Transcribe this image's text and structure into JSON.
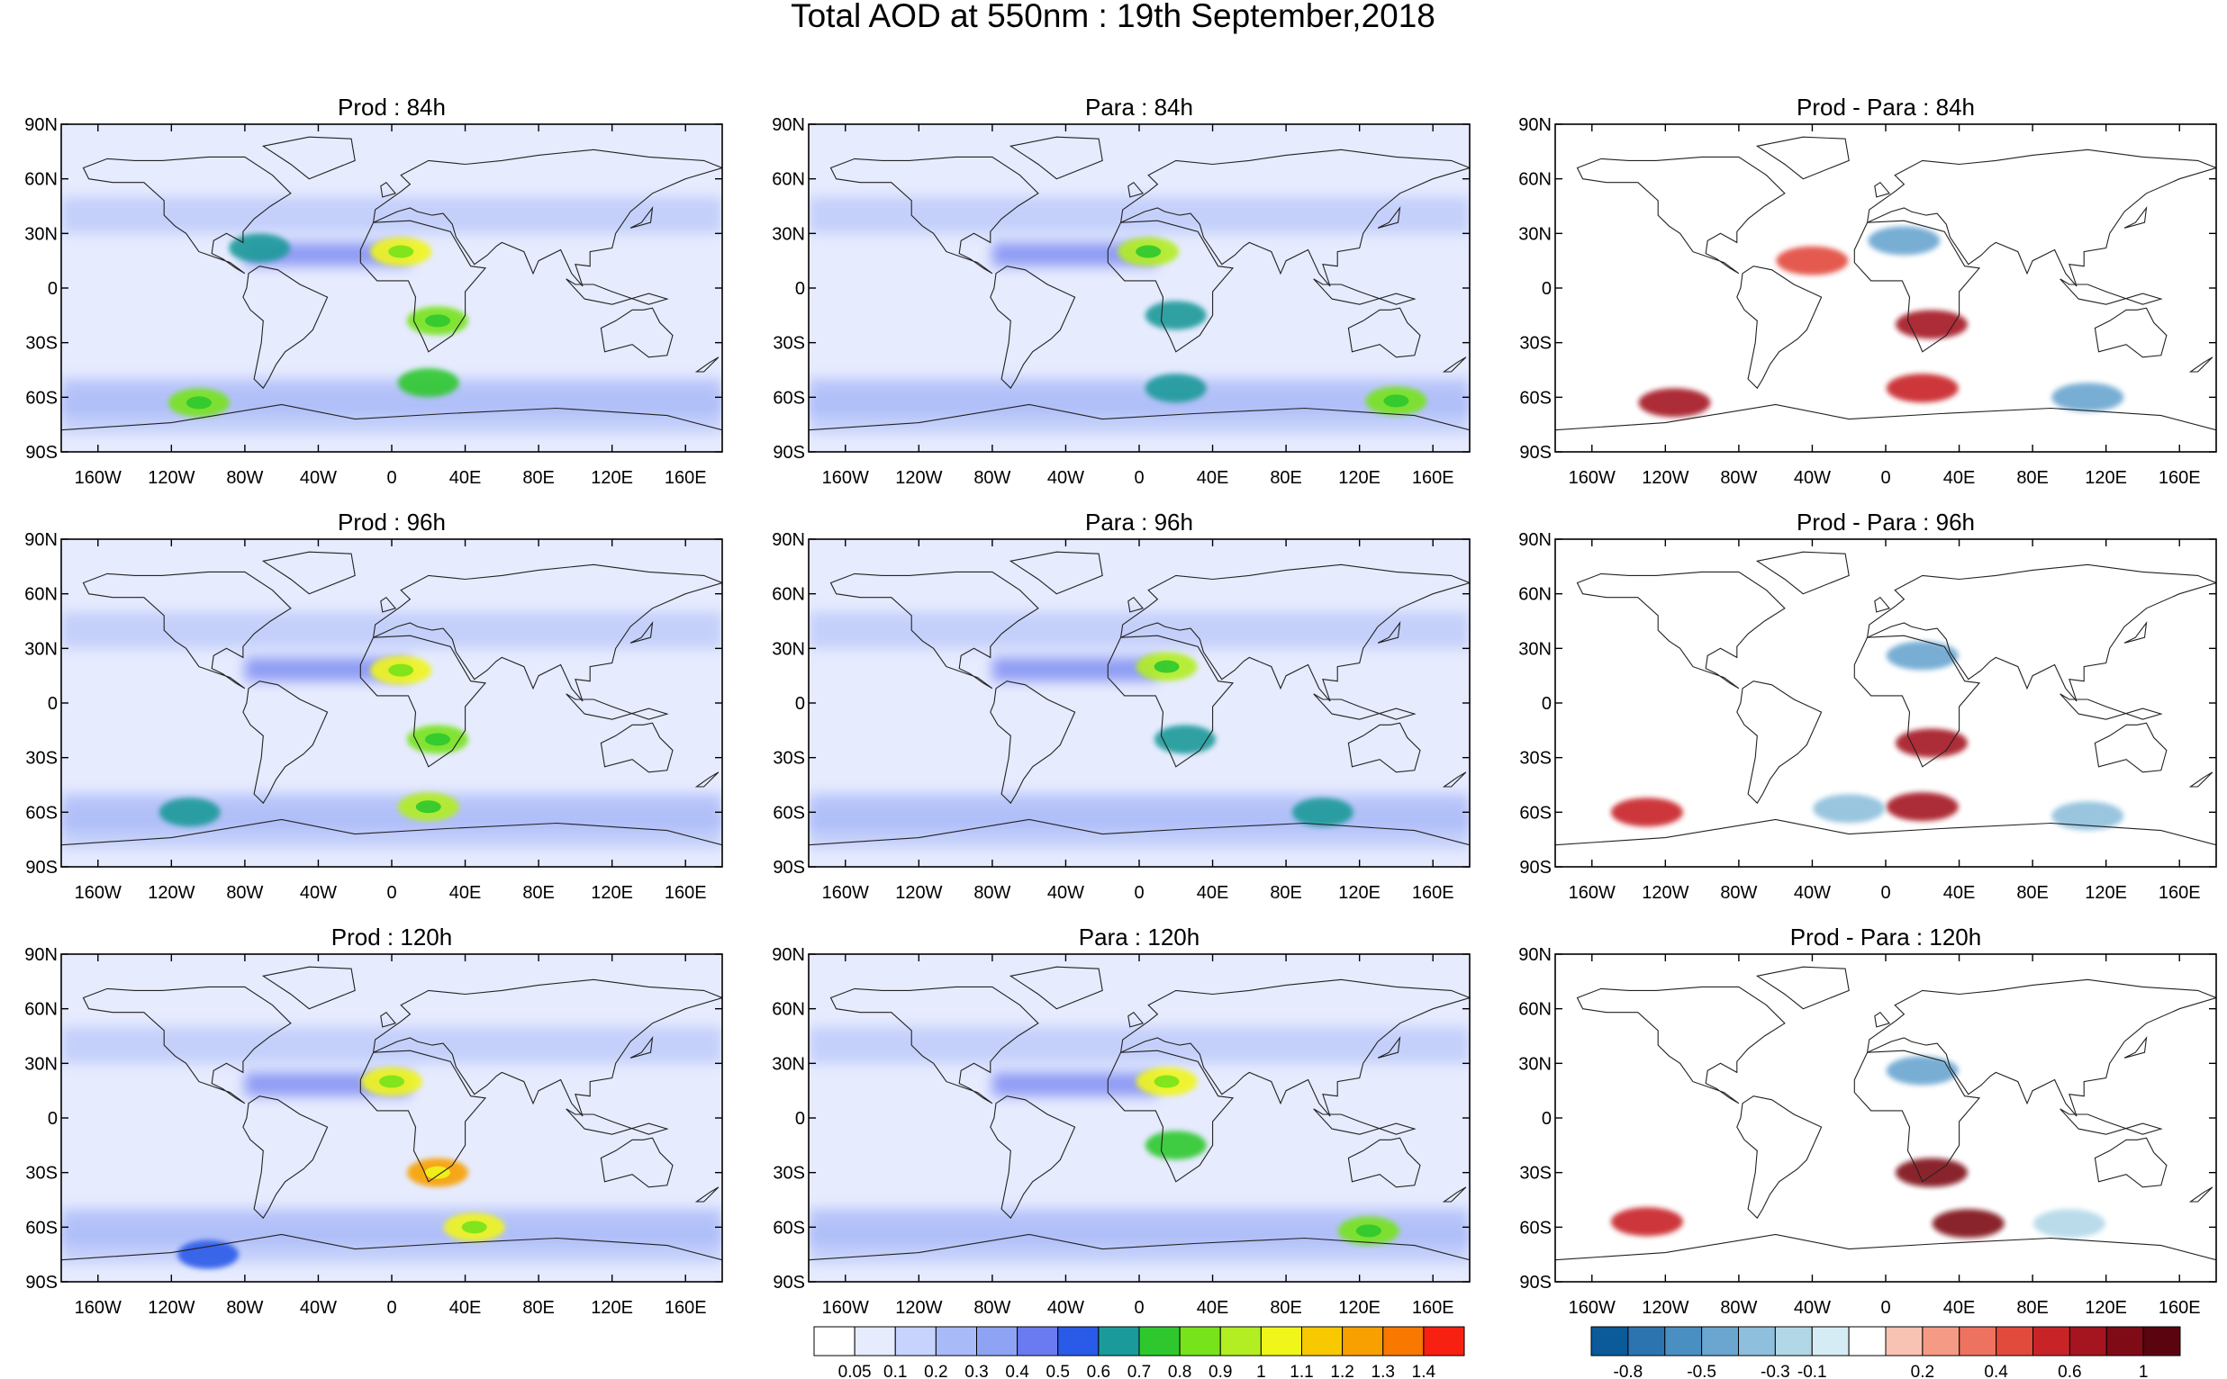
{
  "title": "Total AOD at 550nm : 19th September,2018",
  "axes": {
    "lat_labels": [
      "90N",
      "60N",
      "30N",
      "0",
      "30S",
      "60S",
      "90S"
    ],
    "lon_labels": [
      "160W",
      "120W",
      "80W",
      "40W",
      "0",
      "40E",
      "80E",
      "120E",
      "160E"
    ]
  },
  "panels": [
    {
      "title": "Prod : 84h",
      "kind": "aod"
    },
    {
      "title": "Para : 84h",
      "kind": "aod"
    },
    {
      "title": "Prod - Para : 84h",
      "kind": "diff"
    },
    {
      "title": "Prod : 96h",
      "kind": "aod"
    },
    {
      "title": "Para : 96h",
      "kind": "aod"
    },
    {
      "title": "Prod - Para : 96h",
      "kind": "diff"
    },
    {
      "title": "Prod : 120h",
      "kind": "aod"
    },
    {
      "title": "Para : 120h",
      "kind": "aod"
    },
    {
      "title": "Prod - Para : 120h",
      "kind": "diff"
    }
  ],
  "aod_colorbar": {
    "labels": [
      "0.05",
      "0.1",
      "0.2",
      "0.3",
      "0.4",
      "0.5",
      "0.6",
      "0.7",
      "0.8",
      "0.9",
      "1",
      "1.1",
      "1.2",
      "1.3",
      "1.4"
    ],
    "colors": [
      "#ffffff",
      "#e6ebfe",
      "#c7d3fc",
      "#a9baf8",
      "#8fa3f5",
      "#6a7af0",
      "#2a5ae8",
      "#1a9a9a",
      "#2ec82e",
      "#77e31a",
      "#b2ee22",
      "#f0f51a",
      "#f8c800",
      "#f8a000",
      "#f87800",
      "#f82010"
    ]
  },
  "diff_colorbar": {
    "labels": [
      "-0.8",
      "-0.5",
      "-0.3",
      "-0.1",
      "0.2",
      "0.4",
      "0.6",
      "1"
    ],
    "colors": [
      "#0b5a9a",
      "#2b74b0",
      "#4a8fc2",
      "#6aa6d0",
      "#8ebfdc",
      "#b2d8e8",
      "#d6ecf4",
      "#ffffff",
      "#f9c3b4",
      "#f59a85",
      "#ee7260",
      "#e24a3c",
      "#c82428",
      "#a41520",
      "#7e0b16",
      "#5a0410"
    ]
  },
  "chart_data": [
    {
      "type": "heatmap",
      "title": "Prod : 84h",
      "xlim": [
        -180,
        180
      ],
      "ylim": [
        -90,
        90
      ],
      "colorbar": "aod",
      "features": [
        {
          "lon": -72,
          "lat": 22,
          "value": 0.6
        },
        {
          "lon": 5,
          "lat": 20,
          "value": 1.0
        },
        {
          "lon": 25,
          "lat": -18,
          "value": 0.8
        },
        {
          "lon": -105,
          "lat": -63,
          "value": 0.8
        },
        {
          "lon": 20,
          "lat": -52,
          "value": 0.7
        }
      ]
    },
    {
      "type": "heatmap",
      "title": "Para : 84h",
      "xlim": [
        -180,
        180
      ],
      "ylim": [
        -90,
        90
      ],
      "colorbar": "aod",
      "features": [
        {
          "lon": 5,
          "lat": 20,
          "value": 0.9
        },
        {
          "lon": 20,
          "lat": -15,
          "value": 0.6
        },
        {
          "lon": 140,
          "lat": -62,
          "value": 0.8
        },
        {
          "lon": 20,
          "lat": -55,
          "value": 0.6
        }
      ]
    },
    {
      "type": "heatmap",
      "title": "Prod - Para : 84h",
      "xlim": [
        -180,
        180
      ],
      "ylim": [
        -90,
        90
      ],
      "colorbar": "diff",
      "features": [
        {
          "lon": 10,
          "lat": 26,
          "value": -0.5
        },
        {
          "lon": -40,
          "lat": 15,
          "value": 0.4
        },
        {
          "lon": 25,
          "lat": -20,
          "value": 0.6
        },
        {
          "lon": -115,
          "lat": -63,
          "value": 0.6
        },
        {
          "lon": 20,
          "lat": -55,
          "value": 0.5
        },
        {
          "lon": 110,
          "lat": -60,
          "value": -0.5
        }
      ]
    },
    {
      "type": "heatmap",
      "title": "Prod : 96h",
      "xlim": [
        -180,
        180
      ],
      "ylim": [
        -90,
        90
      ],
      "colorbar": "aod",
      "features": [
        {
          "lon": 5,
          "lat": 18,
          "value": 1.0
        },
        {
          "lon": 25,
          "lat": -20,
          "value": 0.8
        },
        {
          "lon": 20,
          "lat": -57,
          "value": 0.9
        },
        {
          "lon": -110,
          "lat": -60,
          "value": 0.6
        }
      ]
    },
    {
      "type": "heatmap",
      "title": "Para : 96h",
      "xlim": [
        -180,
        180
      ],
      "ylim": [
        -90,
        90
      ],
      "colorbar": "aod",
      "features": [
        {
          "lon": 15,
          "lat": 20,
          "value": 0.9
        },
        {
          "lon": 25,
          "lat": -20,
          "value": 0.6
        },
        {
          "lon": 100,
          "lat": -60,
          "value": 0.6
        }
      ]
    },
    {
      "type": "heatmap",
      "title": "Prod - Para : 96h",
      "xlim": [
        -180,
        180
      ],
      "ylim": [
        -90,
        90
      ],
      "colorbar": "diff",
      "features": [
        {
          "lon": 20,
          "lat": 26,
          "value": -0.5
        },
        {
          "lon": 25,
          "lat": -22,
          "value": 0.6
        },
        {
          "lon": 20,
          "lat": -57,
          "value": 0.6
        },
        {
          "lon": -130,
          "lat": -60,
          "value": 0.5
        },
        {
          "lon": -20,
          "lat": -58,
          "value": -0.4
        },
        {
          "lon": 110,
          "lat": -62,
          "value": -0.4
        }
      ]
    },
    {
      "type": "heatmap",
      "title": "Prod : 120h",
      "xlim": [
        -180,
        180
      ],
      "ylim": [
        -90,
        90
      ],
      "colorbar": "aod",
      "features": [
        {
          "lon": 0,
          "lat": 20,
          "value": 1.0
        },
        {
          "lon": 25,
          "lat": -30,
          "value": 1.2
        },
        {
          "lon": 45,
          "lat": -60,
          "value": 1.0
        },
        {
          "lon": -100,
          "lat": -75,
          "value": 0.5
        }
      ]
    },
    {
      "type": "heatmap",
      "title": "Para : 120h",
      "xlim": [
        -180,
        180
      ],
      "ylim": [
        -90,
        90
      ],
      "colorbar": "aod",
      "features": [
        {
          "lon": 15,
          "lat": 20,
          "value": 1.0
        },
        {
          "lon": 20,
          "lat": -15,
          "value": 0.7
        },
        {
          "lon": 125,
          "lat": -62,
          "value": 0.8
        }
      ]
    },
    {
      "type": "heatmap",
      "title": "Prod - Para : 120h",
      "xlim": [
        -180,
        180
      ],
      "ylim": [
        -90,
        90
      ],
      "colorbar": "diff",
      "features": [
        {
          "lon": 20,
          "lat": 26,
          "value": -0.5
        },
        {
          "lon": 25,
          "lat": -30,
          "value": 0.8
        },
        {
          "lon": 45,
          "lat": -58,
          "value": 0.9
        },
        {
          "lon": -130,
          "lat": -57,
          "value": 0.5
        },
        {
          "lon": 100,
          "lat": -58,
          "value": -0.3
        }
      ]
    }
  ]
}
